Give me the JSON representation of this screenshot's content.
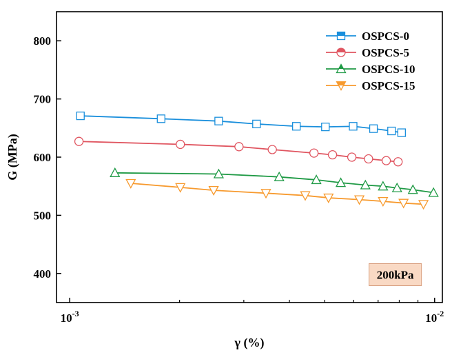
{
  "chart_data": {
    "type": "line",
    "xlabel": "γ (%)",
    "ylabel": "G (MPa)",
    "x_scale": "log",
    "xlim": [
      0.00092,
      0.0105
    ],
    "ylim": [
      350,
      850
    ],
    "x_ticks": [
      {
        "value": 0.001,
        "base": "10",
        "exp": "-3"
      },
      {
        "value": 0.01,
        "base": "10",
        "exp": "-2"
      }
    ],
    "y_ticks": [
      400,
      500,
      600,
      700,
      800
    ],
    "grid": false,
    "legend_position": "top-right",
    "annotation": {
      "text": "200kPa",
      "x": 0.0078,
      "y": 398,
      "background": "#f9d9c4",
      "border": "#d9a080"
    },
    "series": [
      {
        "name": "OSPCS-0",
        "color": "#1a8fdc",
        "marker": "square",
        "x": [
          0.00107,
          0.00178,
          0.00256,
          0.00325,
          0.00418,
          0.00502,
          0.00598,
          0.0068,
          0.00762,
          0.00812
        ],
        "y": [
          671,
          666,
          662,
          657,
          653,
          652,
          653,
          649,
          645,
          642
        ]
      },
      {
        "name": "OSPCS-5",
        "color": "#e05560",
        "marker": "circle",
        "x": [
          0.00106,
          0.00201,
          0.00291,
          0.00359,
          0.00467,
          0.00525,
          0.00593,
          0.00659,
          0.00737,
          0.00794
        ],
        "y": [
          627,
          622,
          618,
          613,
          607,
          604,
          600,
          597,
          594,
          592
        ]
      },
      {
        "name": "OSPCS-10",
        "color": "#1f9a45",
        "marker": "triangle-up",
        "x": [
          0.00133,
          0.00256,
          0.00375,
          0.00474,
          0.00553,
          0.00646,
          0.00722,
          0.00789,
          0.00872,
          0.00993
        ],
        "y": [
          573,
          571,
          566,
          561,
          556,
          552,
          550,
          547,
          544,
          539
        ]
      },
      {
        "name": "OSPCS-15",
        "color": "#f79a2e",
        "marker": "triangle-down",
        "x": [
          0.00147,
          0.00201,
          0.00248,
          0.00345,
          0.00442,
          0.00512,
          0.00622,
          0.00722,
          0.00822,
          0.00932
        ],
        "y": [
          555,
          548,
          543,
          538,
          534,
          530,
          527,
          524,
          521,
          519
        ]
      }
    ]
  }
}
